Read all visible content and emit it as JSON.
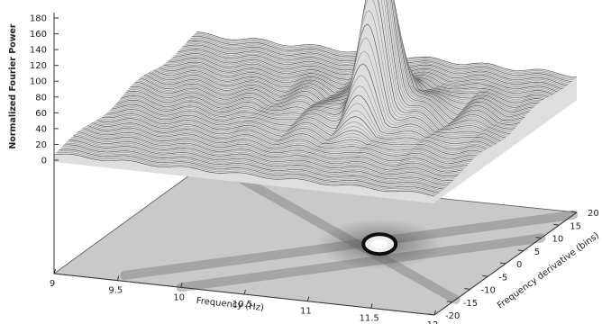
{
  "chart_data": {
    "type": "surface3d",
    "title": "",
    "zlabel": "Normalized Fourier Power",
    "xlabel": "Frequency (Hz)",
    "ylabel": "Frequency derivative (bins)",
    "zticks": [
      "0",
      "20",
      "40",
      "60",
      "80",
      "100",
      "120",
      "140",
      "160",
      "180"
    ],
    "ztick_values": [
      0,
      20,
      40,
      60,
      80,
      100,
      120,
      140,
      160,
      180
    ],
    "xticks": [
      "9",
      "9.5",
      "10",
      "10.5",
      "11",
      "11.5",
      "12"
    ],
    "xtick_values": [
      9,
      9.5,
      10,
      10.5,
      11,
      11.5,
      12
    ],
    "yticks": [
      "-20",
      "-15",
      "-10",
      "-5",
      "0",
      "5",
      "10",
      "15",
      "20"
    ],
    "ytick_values": [
      -20,
      -15,
      -10,
      -5,
      0,
      5,
      10,
      15,
      20
    ],
    "xlim": [
      9,
      12
    ],
    "ylim": [
      -20,
      20
    ],
    "zlim": [
      0,
      180
    ],
    "peak": {
      "x": 10.95,
      "y": 2,
      "z": 185
    },
    "floor_projection": "grayscale density map",
    "grid": false,
    "colors": {
      "surface": "#d9d9d9",
      "mesh": "#5a5a5a",
      "axis": "#333333"
    }
  }
}
